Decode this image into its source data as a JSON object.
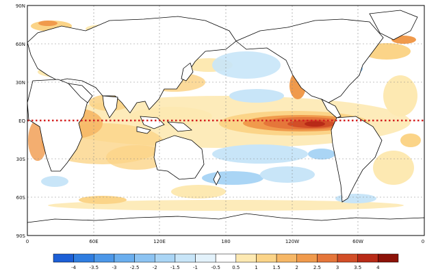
{
  "map": {
    "lat_labels": [
      "90N",
      "60N",
      "30N",
      "EQ",
      "30S",
      "60S",
      "90S"
    ],
    "lon_labels": [
      "0",
      "60E",
      "120E",
      "180",
      "120W",
      "60W",
      "0"
    ],
    "equator_line_color": "#d42020",
    "grid": true,
    "projection": "equirectangular"
  },
  "colorbar": {
    "labels": [
      "-4",
      "-3.5",
      "-3",
      "-2.5",
      "-2",
      "-1.5",
      "-1",
      "-0.5",
      "0.5",
      "1",
      "1.5",
      "2",
      "2.5",
      "3",
      "3.5",
      "4"
    ],
    "colors": [
      "#1c5fd6",
      "#2f7de0",
      "#4c97e8",
      "#6aaeee",
      "#8cc3f2",
      "#aad5f5",
      "#c8e5f8",
      "#e3f2fb",
      "#ffffff",
      "#fde9b2",
      "#fbd488",
      "#f6b766",
      "#f09a4c",
      "#e5763a",
      "#d24e27",
      "#b82a17",
      "#8c1208"
    ]
  }
}
